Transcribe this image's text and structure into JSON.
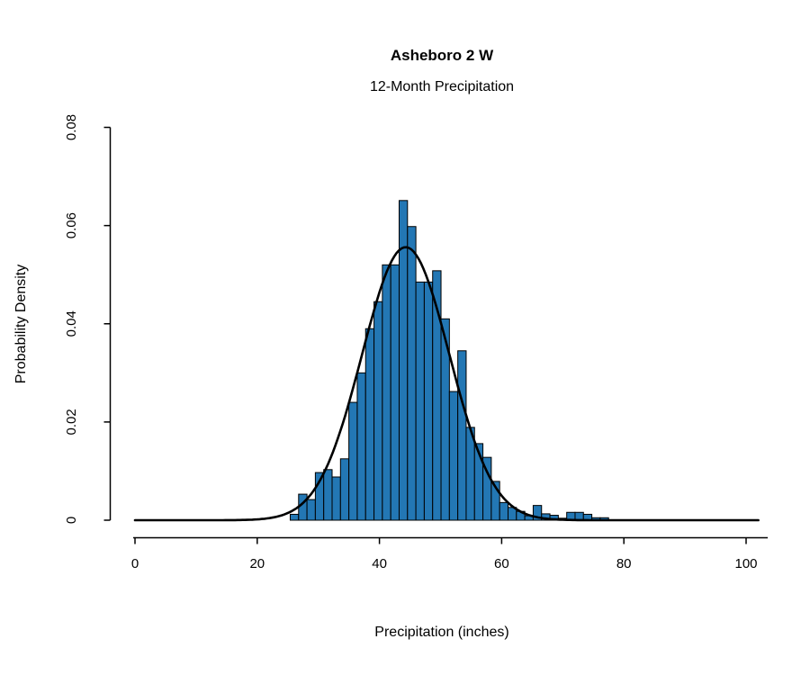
{
  "page": {
    "background_color": "#ffffff",
    "text_color": "#000000"
  },
  "chart_data": {
    "type": "histogram",
    "title": "Asheboro 2 W",
    "subtitle": "12-Month Precipitation",
    "xlabel": "Precipitation (inches)",
    "ylabel": "Probability Density",
    "xlim": [
      0,
      102.5
    ],
    "ylim": [
      0,
      0.08
    ],
    "x_ticks": [
      "0",
      "20",
      "40",
      "60",
      "80",
      "100"
    ],
    "x_tick_values": [
      0,
      20,
      40,
      60,
      80,
      100
    ],
    "y_ticks": [
      "0",
      "0.02",
      "0.04",
      "0.06",
      "0.08"
    ],
    "y_tick_values": [
      0,
      0.02,
      0.04,
      0.06,
      0.08
    ],
    "grid": "off",
    "legend": "none",
    "bar_fill_color": "#2377B4",
    "bar_border_color": "#000000",
    "bin_start": 25.4,
    "bin_width": 1.371,
    "densities": [
      0.0012,
      0.0053,
      0.0042,
      0.0097,
      0.0103,
      0.0088,
      0.0125,
      0.024,
      0.03,
      0.039,
      0.0445,
      0.052,
      0.052,
      0.0651,
      0.0598,
      0.0485,
      0.0485,
      0.0508,
      0.041,
      0.0262,
      0.0345,
      0.0189,
      0.0156,
      0.0128,
      0.0079,
      0.0036,
      0.0026,
      0.0018,
      0.0009,
      0.003,
      0.0013,
      0.001,
      0.0004,
      0.0016,
      0.0016,
      0.0012,
      0.0005,
      0.0005
    ],
    "normal_curve": {
      "mean": 44.3,
      "sd": 7.15,
      "peak_density": 0.0556,
      "color": "#000000",
      "x_range": [
        0,
        102.4
      ]
    }
  }
}
